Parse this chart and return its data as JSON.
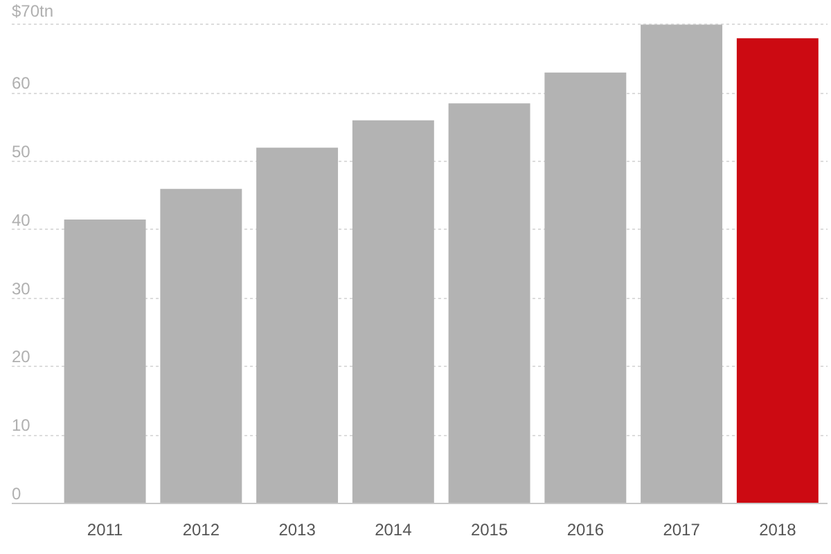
{
  "chart_data": {
    "type": "bar",
    "categories": [
      "2011",
      "2012",
      "2013",
      "2014",
      "2015",
      "2016",
      "2017",
      "2018"
    ],
    "values": [
      41.5,
      46,
      52,
      56,
      58.5,
      63,
      70,
      68
    ],
    "colors": [
      "#b3b3b3",
      "#b3b3b3",
      "#b3b3b3",
      "#b3b3b3",
      "#b3b3b3",
      "#b3b3b3",
      "#b3b3b3",
      "#cc0a12"
    ],
    "ylim": [
      0,
      70
    ],
    "yticks": [
      0,
      10,
      20,
      30,
      40,
      50,
      60,
      {
        "value": 70,
        "label": "$70tn"
      }
    ],
    "grid": "y"
  }
}
